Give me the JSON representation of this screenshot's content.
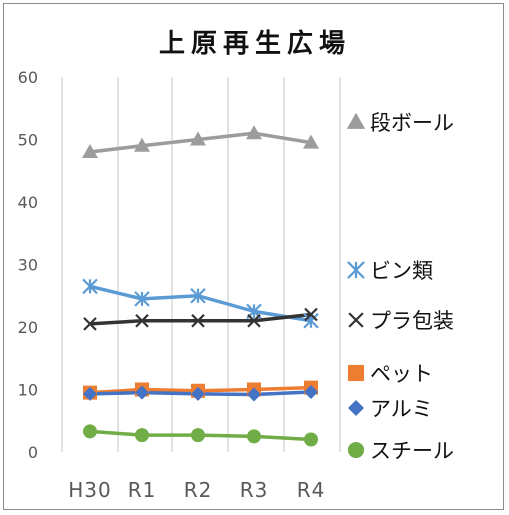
{
  "chart_data": {
    "type": "line",
    "title": "上原再生広場",
    "xlabel": "",
    "ylabel": "",
    "categories": [
      "H30",
      "R1",
      "R2",
      "R3",
      "R4"
    ],
    "ylim": [
      0,
      60
    ],
    "yticks": [
      0,
      10,
      20,
      30,
      40,
      50,
      60
    ],
    "grid": "vertical",
    "legend": "right",
    "series": [
      {
        "name": "段ボール",
        "marker": "triangle",
        "color": "#9c9c9c",
        "values": [
          48,
          49,
          50,
          51,
          49.5
        ]
      },
      {
        "name": "ビン類",
        "marker": "asterisk",
        "color": "#5b9bd5",
        "values": [
          26.5,
          24.5,
          25,
          22.5,
          21
        ]
      },
      {
        "name": "プラ包装",
        "marker": "x",
        "color": "#333333",
        "values": [
          20.5,
          21,
          21,
          21,
          22
        ]
      },
      {
        "name": "ペット",
        "marker": "square",
        "color": "#ed7d31",
        "values": [
          9.5,
          10,
          9.8,
          10,
          10.3
        ]
      },
      {
        "name": "アルミ",
        "marker": "diamond",
        "color": "#4472c4",
        "values": [
          9.3,
          9.5,
          9.3,
          9.2,
          9.6
        ]
      },
      {
        "name": "スチール",
        "marker": "circle",
        "color": "#70ad47",
        "values": [
          3.3,
          2.7,
          2.7,
          2.5,
          2
        ]
      }
    ]
  }
}
